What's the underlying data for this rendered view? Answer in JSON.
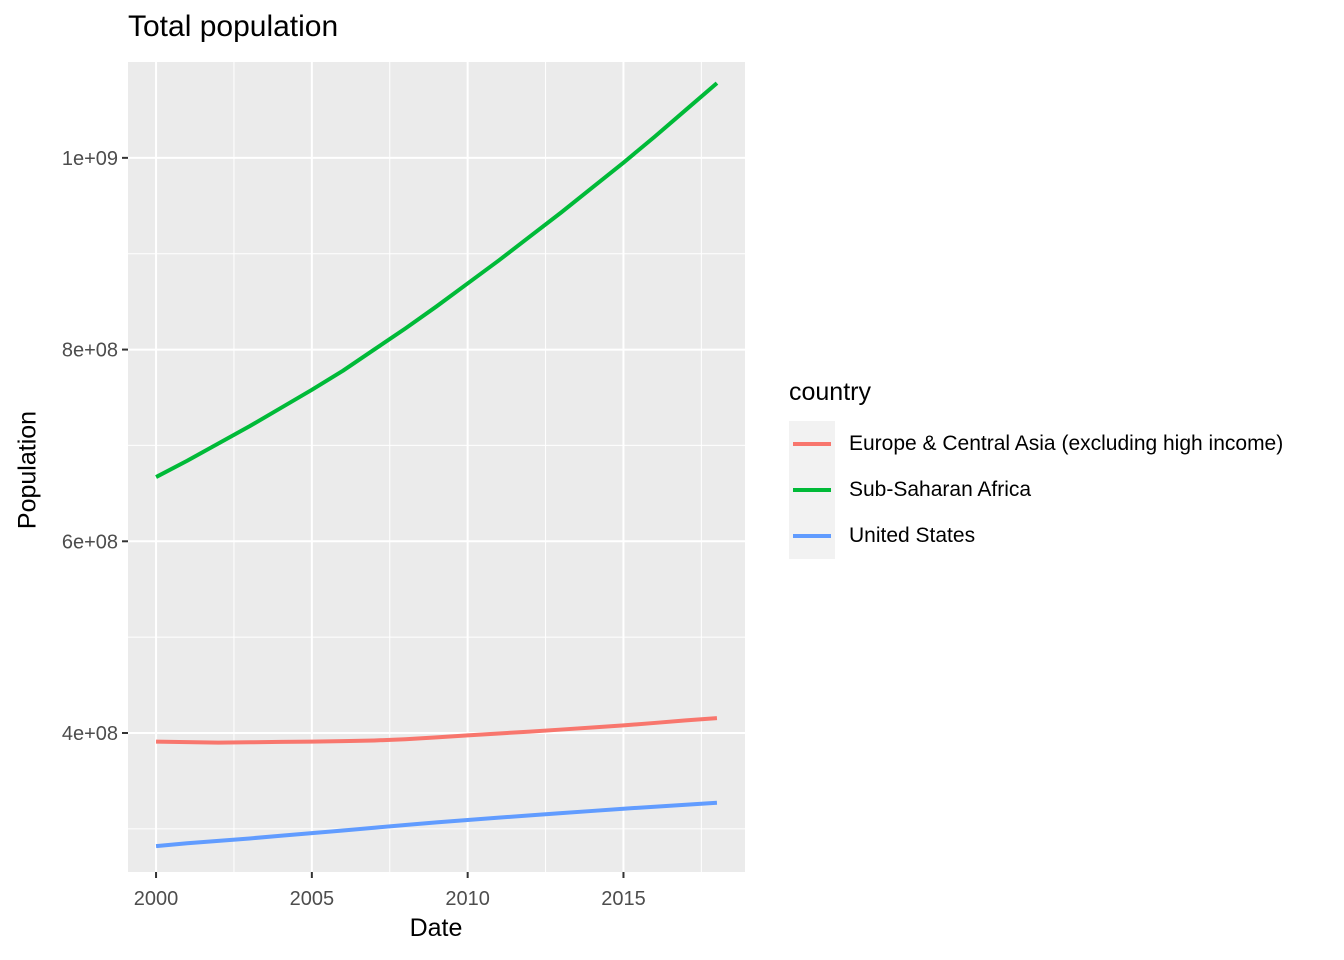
{
  "chart_data": {
    "type": "line",
    "title": "Total population",
    "xlabel": "Date",
    "ylabel": "Population",
    "xlim": [
      1999.1,
      2018.9
    ],
    "ylim": [
      255000000,
      1100000000
    ],
    "x_ticks": [
      2000,
      2005,
      2010,
      2015
    ],
    "x_tick_labels": [
      "2000",
      "2005",
      "2010",
      "2015"
    ],
    "y_ticks": [
      400000000,
      600000000,
      800000000,
      1000000000
    ],
    "y_tick_labels": [
      "4e+08",
      "6e+08",
      "8e+08",
      "1e+09"
    ],
    "grid": true,
    "legend_title": "country",
    "legend_position": "right",
    "x": [
      2000,
      2001,
      2002,
      2003,
      2004,
      2005,
      2006,
      2007,
      2008,
      2009,
      2010,
      2011,
      2012,
      2013,
      2014,
      2015,
      2016,
      2017,
      2018
    ],
    "series": [
      {
        "name": "Europe & Central Asia (excluding high income)",
        "color": "#F8766D",
        "values": [
          391000000,
          390500000,
          390000000,
          390300000,
          390700000,
          391000000,
          391500000,
          392200000,
          393500000,
          395500000,
          397500000,
          399500000,
          401500000,
          403600000,
          405800000,
          408000000,
          410500000,
          413200000,
          415500000
        ]
      },
      {
        "name": "Sub-Saharan Africa",
        "color": "#00BA38",
        "values": [
          667000000,
          684000000,
          702000000,
          720000000,
          739000000,
          758000000,
          778000000,
          800000000,
          822000000,
          845000000,
          869000000,
          893000000,
          918000000,
          943000000,
          969000000,
          995000000,
          1022000000,
          1050000000,
          1078000000
        ]
      },
      {
        "name": "United States",
        "color": "#619CFF",
        "values": [
          282000000,
          285000000,
          287500000,
          290000000,
          292800000,
          295500000,
          298300000,
          301200000,
          304000000,
          306800000,
          309300000,
          311700000,
          314100000,
          316400000,
          318700000,
          321000000,
          323100000,
          325100000,
          327200000
        ]
      }
    ]
  }
}
